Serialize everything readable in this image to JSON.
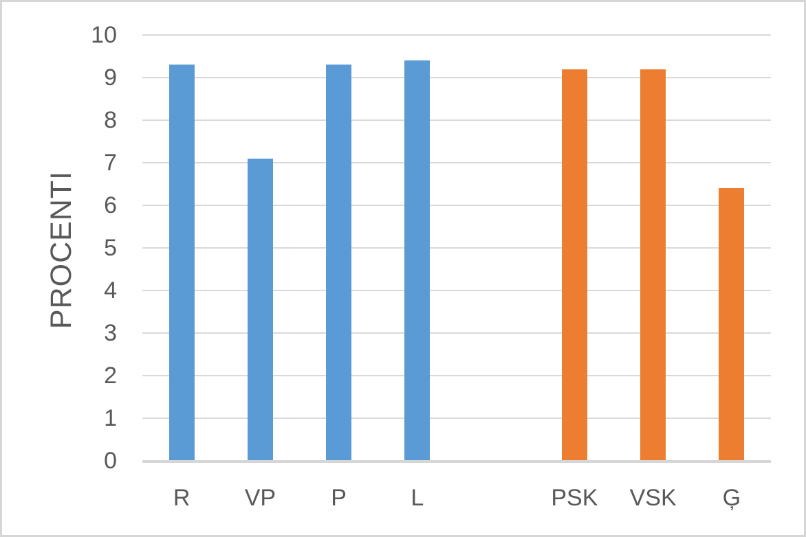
{
  "colors": {
    "bar_blue": "#5B9BD5",
    "bar_orange": "#ED7D31",
    "gridline": "#D9D9D9",
    "axis_line": "#D6D6D6",
    "text": "#595959",
    "frame_border": "#D6D6D6",
    "background": "#FFFFFF"
  },
  "chart_data": {
    "type": "bar",
    "title": "",
    "xlabel": "",
    "ylabel": "PROCENTI",
    "ylim": [
      0,
      10
    ],
    "yticks": [
      0,
      1,
      2,
      3,
      4,
      5,
      6,
      7,
      8,
      9,
      10
    ],
    "grid": true,
    "legend": false,
    "categories": [
      "R",
      "VP",
      "P",
      "L",
      "",
      "PSK",
      "VSK",
      "Ģ"
    ],
    "bars": [
      {
        "label": "R",
        "value": 9.3,
        "series": "blue"
      },
      {
        "label": "VP",
        "value": 7.1,
        "series": "blue"
      },
      {
        "label": "P",
        "value": 9.3,
        "series": "blue"
      },
      {
        "label": "L",
        "value": 9.4,
        "series": "blue"
      },
      {
        "label": "",
        "value": null,
        "series": null
      },
      {
        "label": "PSK",
        "value": 9.2,
        "series": "orange"
      },
      {
        "label": "VSK",
        "value": 9.2,
        "series": "orange"
      },
      {
        "label": "Ģ",
        "value": 6.4,
        "series": "orange"
      }
    ],
    "series": [
      {
        "name": "blue",
        "color": "#5B9BD5"
      },
      {
        "name": "orange",
        "color": "#ED7D31"
      }
    ]
  }
}
